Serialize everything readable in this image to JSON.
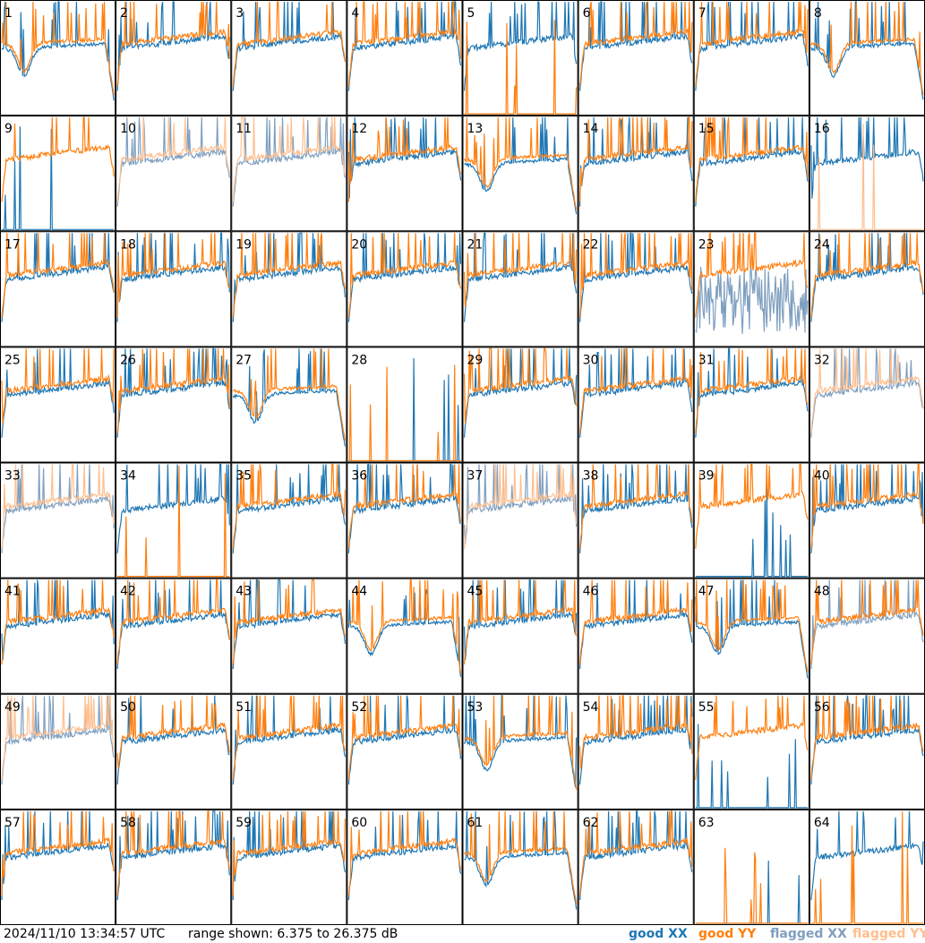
{
  "footer": {
    "timestamp": "2024/11/10 13:34:57 UTC",
    "range": "range shown: 6.375 to 26.375 dB"
  },
  "legend": [
    {
      "label": "good XX",
      "color": "#1f77b4"
    },
    {
      "label": "good YY",
      "color": "#ff7f0e"
    },
    {
      "label": "flagged XX",
      "color": "#7f9fbf"
    },
    {
      "label": "flagged YY",
      "color": "#ffbf8f"
    }
  ],
  "chart_data": {
    "type": "line",
    "title": "",
    "xlabel": "",
    "ylabel": "",
    "ylim": [
      6.375,
      26.375
    ],
    "ylim_unit": "dB",
    "grid": "8x8",
    "panels": [
      {
        "id": "1",
        "xx": "good",
        "yy": "good",
        "shape": "dip"
      },
      {
        "id": "2",
        "xx": "good",
        "yy": "good",
        "shape": "normal"
      },
      {
        "id": "3",
        "xx": "good",
        "yy": "good",
        "shape": "normal"
      },
      {
        "id": "4",
        "xx": "good",
        "yy": "good",
        "shape": "normal"
      },
      {
        "id": "5",
        "xx": "good",
        "yy": "good",
        "shape": "yydead"
      },
      {
        "id": "6",
        "xx": "good",
        "yy": "good",
        "shape": "normal"
      },
      {
        "id": "7",
        "xx": "good",
        "yy": "good",
        "shape": "normal"
      },
      {
        "id": "8",
        "xx": "good",
        "yy": "good",
        "shape": "dip"
      },
      {
        "id": "9",
        "xx": "good",
        "yy": "good",
        "shape": "xxdead"
      },
      {
        "id": "10",
        "xx": "flagged",
        "yy": "flagged",
        "shape": "normal"
      },
      {
        "id": "11",
        "xx": "flagged",
        "yy": "flagged",
        "shape": "normal"
      },
      {
        "id": "12",
        "xx": "good",
        "yy": "good",
        "shape": "normal"
      },
      {
        "id": "13",
        "xx": "good",
        "yy": "good",
        "shape": "dip"
      },
      {
        "id": "14",
        "xx": "good",
        "yy": "good",
        "shape": "normal"
      },
      {
        "id": "15",
        "xx": "good",
        "yy": "good",
        "shape": "normal"
      },
      {
        "id": "16",
        "xx": "good",
        "yy": "flagged",
        "shape": "yydead"
      },
      {
        "id": "17",
        "xx": "good",
        "yy": "good",
        "shape": "normal"
      },
      {
        "id": "18",
        "xx": "good",
        "yy": "good",
        "shape": "normal"
      },
      {
        "id": "19",
        "xx": "good",
        "yy": "good",
        "shape": "normal"
      },
      {
        "id": "20",
        "xx": "good",
        "yy": "good",
        "shape": "normal"
      },
      {
        "id": "21",
        "xx": "good",
        "yy": "good",
        "shape": "normal"
      },
      {
        "id": "22",
        "xx": "good",
        "yy": "good",
        "shape": "normal"
      },
      {
        "id": "23",
        "xx": "flagged",
        "yy": "good",
        "shape": "flat"
      },
      {
        "id": "24",
        "xx": "good",
        "yy": "good",
        "shape": "normal"
      },
      {
        "id": "25",
        "xx": "good",
        "yy": "good",
        "shape": "normal"
      },
      {
        "id": "26",
        "xx": "good",
        "yy": "good",
        "shape": "normal"
      },
      {
        "id": "27",
        "xx": "good",
        "yy": "good",
        "shape": "dip"
      },
      {
        "id": "28",
        "xx": "good",
        "yy": "good",
        "shape": "bothdead"
      },
      {
        "id": "29",
        "xx": "good",
        "yy": "good",
        "shape": "normal"
      },
      {
        "id": "30",
        "xx": "good",
        "yy": "good",
        "shape": "normal"
      },
      {
        "id": "31",
        "xx": "good",
        "yy": "good",
        "shape": "normal"
      },
      {
        "id": "32",
        "xx": "flagged",
        "yy": "flagged",
        "shape": "normal"
      },
      {
        "id": "33",
        "xx": "flagged",
        "yy": "flagged",
        "shape": "normal"
      },
      {
        "id": "34",
        "xx": "good",
        "yy": "good",
        "shape": "yydead"
      },
      {
        "id": "35",
        "xx": "good",
        "yy": "good",
        "shape": "normal"
      },
      {
        "id": "36",
        "xx": "good",
        "yy": "good",
        "shape": "normal"
      },
      {
        "id": "37",
        "xx": "flagged",
        "yy": "flagged",
        "shape": "normal"
      },
      {
        "id": "38",
        "xx": "good",
        "yy": "good",
        "shape": "normal"
      },
      {
        "id": "39",
        "xx": "good",
        "yy": "good",
        "shape": "xxdead"
      },
      {
        "id": "40",
        "xx": "good",
        "yy": "good",
        "shape": "normal"
      },
      {
        "id": "41",
        "xx": "good",
        "yy": "good",
        "shape": "normal"
      },
      {
        "id": "42",
        "xx": "good",
        "yy": "good",
        "shape": "normal"
      },
      {
        "id": "43",
        "xx": "good",
        "yy": "good",
        "shape": "normal"
      },
      {
        "id": "44",
        "xx": "good",
        "yy": "good",
        "shape": "dip"
      },
      {
        "id": "45",
        "xx": "good",
        "yy": "good",
        "shape": "normal"
      },
      {
        "id": "46",
        "xx": "good",
        "yy": "good",
        "shape": "normal"
      },
      {
        "id": "47",
        "xx": "good",
        "yy": "good",
        "shape": "dip"
      },
      {
        "id": "48",
        "xx": "flagged",
        "yy": "good",
        "shape": "normal"
      },
      {
        "id": "49",
        "xx": "flagged",
        "yy": "flagged",
        "shape": "normal"
      },
      {
        "id": "50",
        "xx": "good",
        "yy": "good",
        "shape": "normal"
      },
      {
        "id": "51",
        "xx": "good",
        "yy": "good",
        "shape": "normal"
      },
      {
        "id": "52",
        "xx": "good",
        "yy": "good",
        "shape": "normal"
      },
      {
        "id": "53",
        "xx": "good",
        "yy": "good",
        "shape": "dip"
      },
      {
        "id": "54",
        "xx": "good",
        "yy": "good",
        "shape": "normal"
      },
      {
        "id": "55",
        "xx": "good",
        "yy": "good",
        "shape": "xxdead"
      },
      {
        "id": "56",
        "xx": "good",
        "yy": "good",
        "shape": "normal"
      },
      {
        "id": "57",
        "xx": "good",
        "yy": "good",
        "shape": "normal"
      },
      {
        "id": "58",
        "xx": "good",
        "yy": "good",
        "shape": "normal"
      },
      {
        "id": "59",
        "xx": "good",
        "yy": "good",
        "shape": "normal"
      },
      {
        "id": "60",
        "xx": "good",
        "yy": "good",
        "shape": "normal"
      },
      {
        "id": "61",
        "xx": "good",
        "yy": "good",
        "shape": "dip"
      },
      {
        "id": "62",
        "xx": "good",
        "yy": "good",
        "shape": "normal"
      },
      {
        "id": "63",
        "xx": "good",
        "yy": "good",
        "shape": "bothdead"
      },
      {
        "id": "64",
        "xx": "good",
        "yy": "good",
        "shape": "yydead"
      }
    ]
  }
}
